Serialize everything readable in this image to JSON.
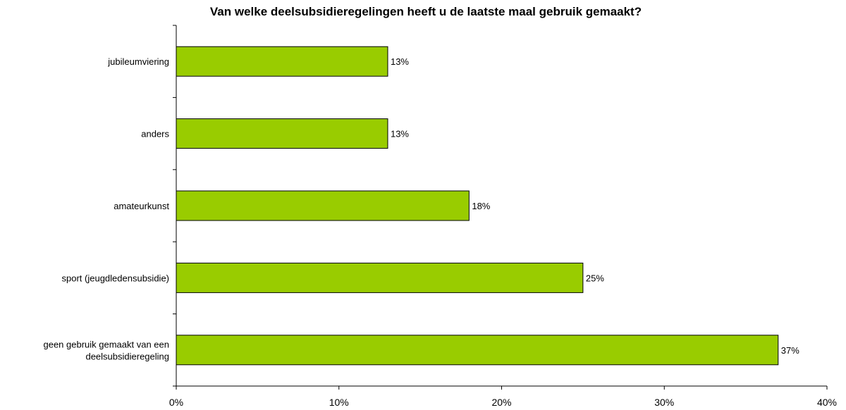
{
  "chart_data": {
    "type": "bar",
    "orientation": "horizontal",
    "title": "Van welke deelsubsidieregelingen heeft u de laatste maal gebruik gemaakt?",
    "categories": [
      "jubileumviering",
      "anders",
      "amateurkunst",
      "sport (jeugdledensubsidie)",
      "geen gebruik gemaakt van een deelsubsidieregeling"
    ],
    "category_lines": [
      [
        "jubileumviering"
      ],
      [
        "anders"
      ],
      [
        "amateurkunst"
      ],
      [
        "sport (jeugdledensubsidie)"
      ],
      [
        "geen gebruik gemaakt van een",
        "deelsubsidieregeling"
      ]
    ],
    "values": [
      13,
      13,
      18,
      25,
      37
    ],
    "data_labels": [
      "13%",
      "13%",
      "18%",
      "25%",
      "37%"
    ],
    "xlim": [
      0,
      40
    ],
    "xticks": [
      0,
      10,
      20,
      30,
      40
    ],
    "xtick_labels": [
      "0%",
      "10%",
      "20%",
      "30%",
      "40%"
    ],
    "xlabel": "",
    "ylabel": "",
    "grid": false,
    "legend": "none",
    "bar_color": "#99cc00",
    "bar_border_color": "#000000"
  }
}
